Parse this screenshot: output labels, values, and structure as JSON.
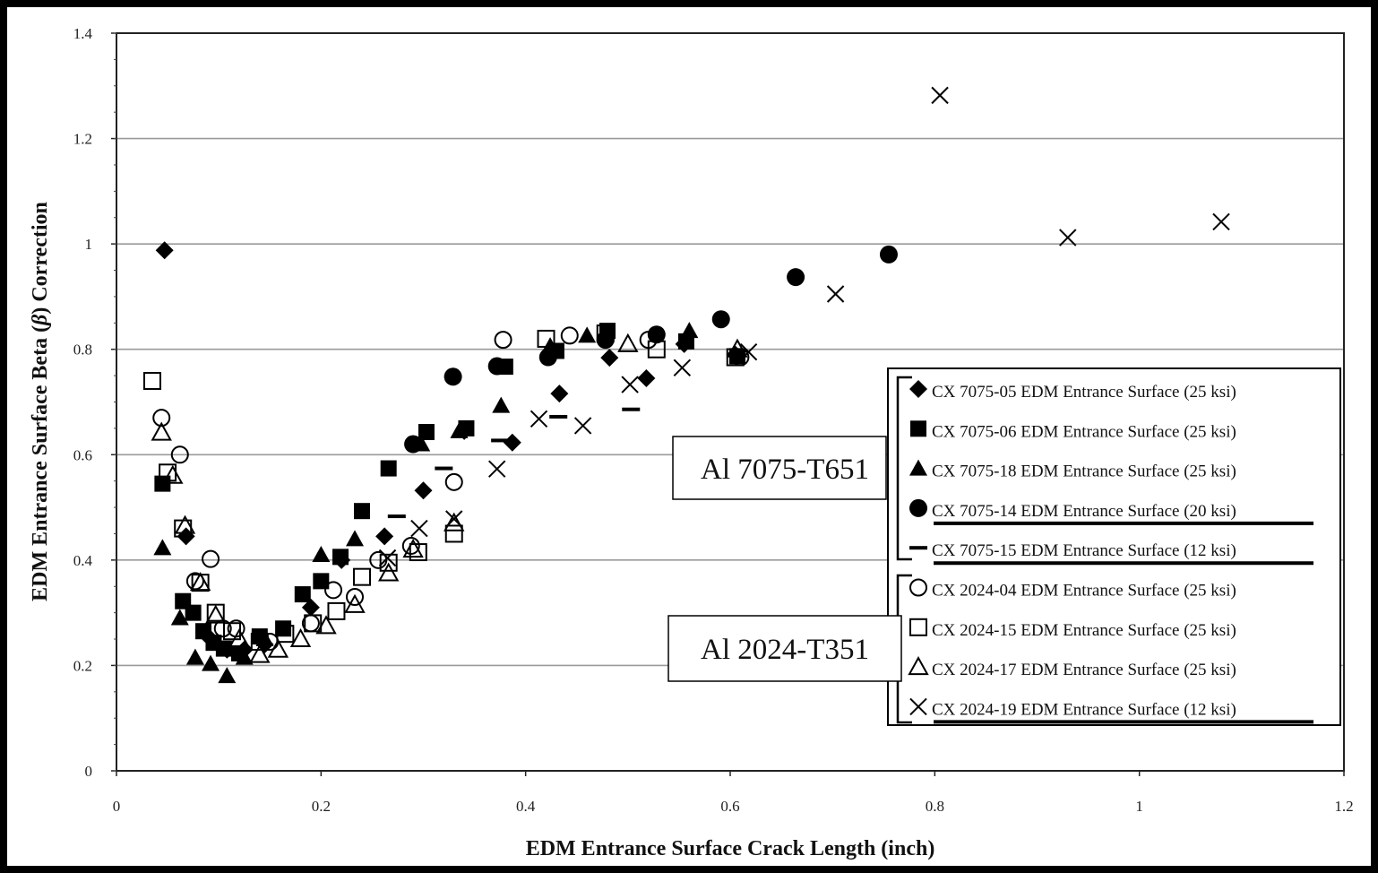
{
  "chart_data": {
    "type": "scatter",
    "title": "",
    "xlabel": "EDM Entrance Surface Crack Length (inch)",
    "ylabel_parts": [
      "EDM Entrance Surface Beta (",
      "β",
      ") Correction"
    ],
    "xlim": [
      0,
      1.2
    ],
    "ylim": [
      0,
      1.4
    ],
    "x_ticks": [
      "0",
      "0.2",
      "0.4",
      "0.6",
      "0.8",
      "1",
      "1.2"
    ],
    "y_ticks": [
      "0",
      "0.2",
      "0.4",
      "0.6",
      "0.8",
      "1",
      "1.2",
      "1.4"
    ],
    "grid": "horizontal",
    "legend_position": "bottom-right",
    "groups": [
      {
        "label": "Al 7075-T651",
        "series_indices": [
          0,
          1,
          2,
          3,
          4
        ]
      },
      {
        "label": "Al 2024-T351",
        "series_indices": [
          5,
          6,
          7,
          8
        ]
      }
    ],
    "series": [
      {
        "name": "CX 7075-05 EDM Entrance Surface (25 ksi)",
        "marker": "diamond-filled",
        "underlined": false,
        "points": [
          [
            0.047,
            0.988
          ],
          [
            0.068,
            0.445
          ],
          [
            0.092,
            0.25
          ],
          [
            0.108,
            0.23
          ],
          [
            0.125,
            0.23
          ],
          [
            0.145,
            0.24
          ],
          [
            0.19,
            0.31
          ],
          [
            0.22,
            0.4
          ],
          [
            0.262,
            0.445
          ],
          [
            0.3,
            0.532
          ],
          [
            0.34,
            0.645
          ],
          [
            0.387,
            0.623
          ],
          [
            0.433,
            0.716
          ],
          [
            0.482,
            0.784
          ],
          [
            0.518,
            0.745
          ],
          [
            0.555,
            0.81
          ],
          [
            0.605,
            0.79
          ]
        ]
      },
      {
        "name": "CX 7075-06 EDM Entrance Surface (25 ksi)",
        "marker": "square-filled",
        "underlined": false,
        "points": [
          [
            0.045,
            0.545
          ],
          [
            0.065,
            0.322
          ],
          [
            0.075,
            0.3
          ],
          [
            0.085,
            0.265
          ],
          [
            0.095,
            0.243
          ],
          [
            0.105,
            0.232
          ],
          [
            0.12,
            0.223
          ],
          [
            0.14,
            0.255
          ],
          [
            0.163,
            0.27
          ],
          [
            0.182,
            0.335
          ],
          [
            0.2,
            0.36
          ],
          [
            0.219,
            0.406
          ],
          [
            0.24,
            0.493
          ],
          [
            0.266,
            0.574
          ],
          [
            0.303,
            0.643
          ],
          [
            0.342,
            0.65
          ],
          [
            0.38,
            0.767
          ],
          [
            0.43,
            0.797
          ],
          [
            0.48,
            0.835
          ],
          [
            0.557,
            0.815
          ],
          [
            0.607,
            0.787
          ]
        ]
      },
      {
        "name": "CX 7075-18 EDM Entrance Surface (25 ksi)",
        "marker": "triangle-filled",
        "underlined": false,
        "points": [
          [
            0.045,
            0.423
          ],
          [
            0.062,
            0.29
          ],
          [
            0.077,
            0.215
          ],
          [
            0.092,
            0.203
          ],
          [
            0.108,
            0.18
          ],
          [
            0.125,
            0.215
          ],
          [
            0.145,
            0.25
          ],
          [
            0.2,
            0.41
          ],
          [
            0.233,
            0.44
          ],
          [
            0.298,
            0.62
          ],
          [
            0.335,
            0.645
          ],
          [
            0.376,
            0.693
          ],
          [
            0.424,
            0.806
          ],
          [
            0.46,
            0.826
          ],
          [
            0.56,
            0.835
          ]
        ]
      },
      {
        "name": "CX 7075-14 EDM Entrance Surface (20 ksi)",
        "marker": "circle-filled",
        "underlined": true,
        "points": [
          [
            0.29,
            0.62
          ],
          [
            0.329,
            0.748
          ],
          [
            0.372,
            0.768
          ],
          [
            0.422,
            0.785
          ],
          [
            0.478,
            0.818
          ],
          [
            0.528,
            0.828
          ],
          [
            0.591,
            0.857
          ],
          [
            0.664,
            0.937
          ],
          [
            0.755,
            0.98
          ]
        ]
      },
      {
        "name": "CX 7075-15 EDM Entrance Surface (12 ksi)",
        "marker": "dash",
        "underlined": true,
        "points": [
          [
            0.274,
            0.483
          ],
          [
            0.32,
            0.574
          ],
          [
            0.375,
            0.627
          ],
          [
            0.432,
            0.672
          ],
          [
            0.503,
            0.686
          ]
        ]
      },
      {
        "name": "CX 2024-04 EDM Entrance Surface (25 ksi)",
        "marker": "circle-open",
        "underlined": false,
        "points": [
          [
            0.044,
            0.67
          ],
          [
            0.062,
            0.6
          ],
          [
            0.077,
            0.36
          ],
          [
            0.092,
            0.402
          ],
          [
            0.104,
            0.27
          ],
          [
            0.117,
            0.27
          ],
          [
            0.15,
            0.245
          ],
          [
            0.19,
            0.28
          ],
          [
            0.212,
            0.343
          ],
          [
            0.233,
            0.33
          ],
          [
            0.256,
            0.4
          ],
          [
            0.288,
            0.427
          ],
          [
            0.33,
            0.548
          ],
          [
            0.378,
            0.818
          ],
          [
            0.443,
            0.826
          ],
          [
            0.52,
            0.818
          ],
          [
            0.61,
            0.785
          ]
        ]
      },
      {
        "name": "CX 2024-15 EDM Entrance Surface (25 ksi)",
        "marker": "square-open",
        "underlined": false,
        "points": [
          [
            0.035,
            0.74
          ],
          [
            0.05,
            0.566
          ],
          [
            0.065,
            0.46
          ],
          [
            0.082,
            0.357
          ],
          [
            0.097,
            0.3
          ],
          [
            0.113,
            0.265
          ],
          [
            0.14,
            0.245
          ],
          [
            0.165,
            0.26
          ],
          [
            0.192,
            0.28
          ],
          [
            0.215,
            0.303
          ],
          [
            0.24,
            0.368
          ],
          [
            0.266,
            0.395
          ],
          [
            0.295,
            0.415
          ],
          [
            0.33,
            0.45
          ],
          [
            0.42,
            0.82
          ],
          [
            0.478,
            0.83
          ],
          [
            0.528,
            0.8
          ],
          [
            0.605,
            0.785
          ]
        ]
      },
      {
        "name": "CX 2024-17 EDM Entrance Surface (25 ksi)",
        "marker": "triangle-open",
        "underlined": false,
        "points": [
          [
            0.044,
            0.642
          ],
          [
            0.055,
            0.56
          ],
          [
            0.067,
            0.465
          ],
          [
            0.082,
            0.357
          ],
          [
            0.097,
            0.295
          ],
          [
            0.12,
            0.25
          ],
          [
            0.14,
            0.22
          ],
          [
            0.158,
            0.23
          ],
          [
            0.18,
            0.25
          ],
          [
            0.205,
            0.275
          ],
          [
            0.233,
            0.315
          ],
          [
            0.266,
            0.375
          ],
          [
            0.29,
            0.42
          ],
          [
            0.33,
            0.47
          ],
          [
            0.5,
            0.81
          ],
          [
            0.607,
            0.8
          ]
        ]
      },
      {
        "name": "CX 2024-19 EDM Entrance Surface (12 ksi)",
        "marker": "x",
        "underlined": true,
        "points": [
          [
            0.265,
            0.404
          ],
          [
            0.296,
            0.46
          ],
          [
            0.33,
            0.478
          ],
          [
            0.372,
            0.573
          ],
          [
            0.413,
            0.668
          ],
          [
            0.456,
            0.655
          ],
          [
            0.502,
            0.733
          ],
          [
            0.553,
            0.765
          ],
          [
            0.618,
            0.795
          ],
          [
            0.703,
            0.905
          ],
          [
            0.805,
            1.282
          ],
          [
            0.93,
            1.012
          ],
          [
            1.08,
            1.042
          ]
        ]
      }
    ]
  }
}
